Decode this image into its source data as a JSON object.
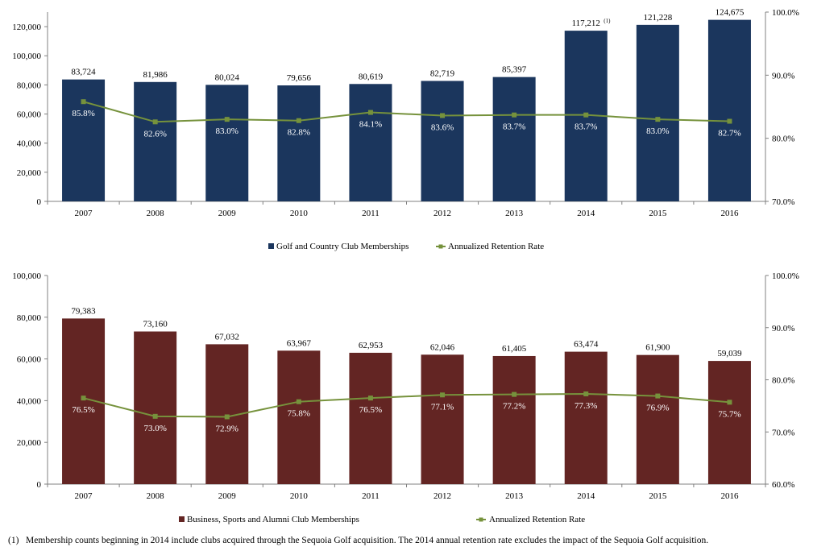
{
  "chart_data": [
    {
      "type": "bar",
      "title": "",
      "categories": [
        "2007",
        "2008",
        "2009",
        "2010",
        "2011",
        "2012",
        "2013",
        "2014",
        "2015",
        "2016"
      ],
      "series": [
        {
          "name": "Golf and Country Club Memberships",
          "kind": "bar",
          "axis": "left",
          "color": "#1b365d",
          "values": [
            83724,
            81986,
            80024,
            79656,
            80619,
            82719,
            85397,
            117212,
            121228,
            124675
          ],
          "labels": [
            "83,724",
            "81,986",
            "80,024",
            "79,656",
            "80,619",
            "82,719",
            "85,397",
            "117,212",
            "121,228",
            "124,675"
          ]
        },
        {
          "name": "Annualized Retention Rate",
          "kind": "line",
          "axis": "right",
          "color": "#76923c",
          "values": [
            85.8,
            82.6,
            83.0,
            82.8,
            84.1,
            83.6,
            83.7,
            83.7,
            83.0,
            82.7
          ],
          "labels": [
            "85.8%",
            "82.6%",
            "83.0%",
            "82.8%",
            "84.1%",
            "83.6%",
            "83.7%",
            "83.7%",
            "83.0%",
            "82.7%"
          ]
        }
      ],
      "ylim_left": [
        0,
        130000
      ],
      "yticks_left": [
        "0",
        "20,000",
        "40,000",
        "60,000",
        "80,000",
        "100,000",
        "120,000"
      ],
      "ylim_right": [
        70,
        100
      ],
      "yticks_right": [
        "70.0%",
        "80.0%",
        "90.0%",
        "100.0%"
      ],
      "note_marker": "(1)",
      "note_index": 7,
      "legend_position": "bottom-center"
    },
    {
      "type": "bar",
      "title": "",
      "categories": [
        "2007",
        "2008",
        "2009",
        "2010",
        "2011",
        "2012",
        "2013",
        "2014",
        "2015",
        "2016"
      ],
      "series": [
        {
          "name": "Business, Sports and Alumni Club Memberships",
          "kind": "bar",
          "axis": "left",
          "color": "#632523",
          "values": [
            79383,
            73160,
            67032,
            63967,
            62953,
            62046,
            61405,
            63474,
            61900,
            59039
          ],
          "labels": [
            "79,383",
            "73,160",
            "67,032",
            "63,967",
            "62,953",
            "62,046",
            "61,405",
            "63,474",
            "61,900",
            "59,039"
          ]
        },
        {
          "name": "Annualized Retention Rate",
          "kind": "line",
          "axis": "right",
          "color": "#76923c",
          "values": [
            76.5,
            73.0,
            72.9,
            75.8,
            76.5,
            77.1,
            77.2,
            77.3,
            76.9,
            75.7
          ],
          "labels": [
            "76.5%",
            "73.0%",
            "72.9%",
            "75.8%",
            "76.5%",
            "77.1%",
            "77.2%",
            "77.3%",
            "76.9%",
            "75.7%"
          ]
        }
      ],
      "ylim_left": [
        0,
        100000
      ],
      "yticks_left": [
        "0",
        "20,000",
        "40,000",
        "60,000",
        "80,000",
        "100,000"
      ],
      "ylim_right": [
        60,
        100
      ],
      "yticks_right": [
        "60.0%",
        "70.0%",
        "80.0%",
        "90.0%",
        "100.0%"
      ],
      "legend_position": "bottom-center"
    }
  ],
  "footnote": {
    "marker": "(1)",
    "text": "Membership counts beginning in 2014 include clubs acquired through the Sequoia Golf acquisition.  The 2014 annual retention rate excludes the impact of the Sequoia Golf acquisition."
  }
}
